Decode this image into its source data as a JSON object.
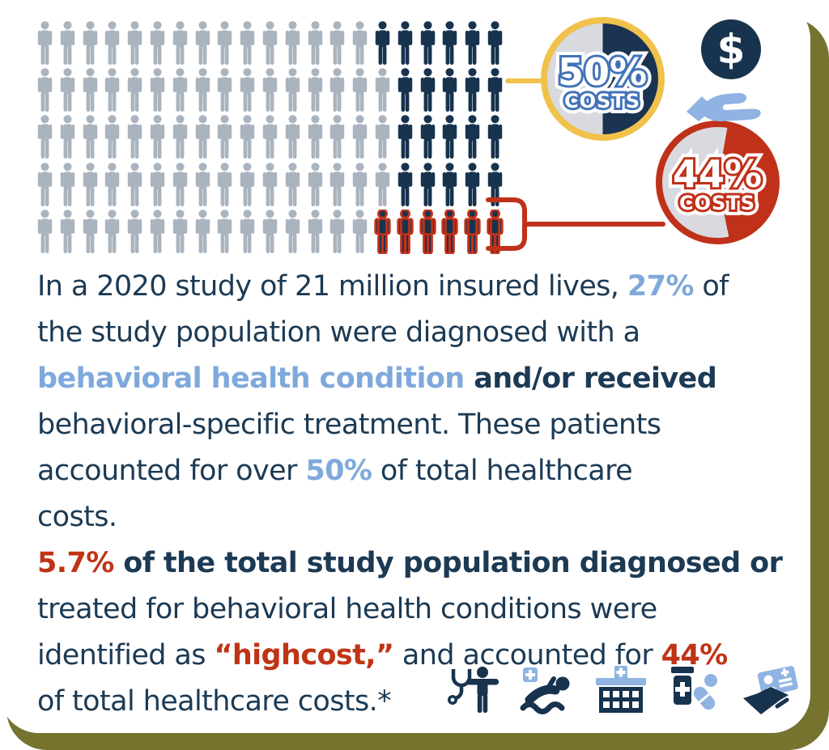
{
  "colors": {
    "navy": "#17334E",
    "gray_person": "#AAB4BF",
    "red": "#C0311A",
    "gold": "#F0C14B",
    "light_blue": "#8FB3E2",
    "pie_gray": "#D8DADF",
    "text_navy": "#1C3A54",
    "text_blue": "#7FA9DC",
    "text_red": "#BF3415",
    "olive": "#75732E",
    "blue_outline": "#4273B8"
  },
  "pictograph": {
    "columns": 21,
    "rows": [
      {
        "gray": 15,
        "navy": 6,
        "red": 0
      },
      {
        "gray": 16,
        "navy": 5,
        "red": 0
      },
      {
        "gray": 16,
        "navy": 5,
        "red": 0
      },
      {
        "gray": 16,
        "navy": 5,
        "red": 0
      },
      {
        "gray": 15,
        "navy": 0,
        "red": 6
      }
    ]
  },
  "pie_50": {
    "value": "50%",
    "label": "COSTS"
  },
  "pie_44": {
    "value": "44%",
    "label": "COSTS"
  },
  "money_icon": {
    "symbol": "$"
  },
  "text_lines": [
    [
      {
        "t": "In a 2020 study of 21 million insured lives, ",
        "s": "n"
      },
      {
        "t": "27%",
        "s": "bb"
      },
      {
        "t": " of",
        "s": "n"
      }
    ],
    [
      {
        "t": "the study population were diagnosed with a",
        "s": "n"
      }
    ],
    [
      {
        "t": "behavioral health condition",
        "s": "bb"
      },
      {
        "t": " and/or received",
        "s": "nb"
      }
    ],
    [
      {
        "t": "behavioral-specific treatment. These patients",
        "s": "n"
      }
    ],
    [
      {
        "t": "accounted for over ",
        "s": "n"
      },
      {
        "t": "50%",
        "s": "bb"
      },
      {
        "t": " of total healthcare",
        "s": "n"
      }
    ],
    [
      {
        "t": "costs.",
        "s": "n"
      }
    ],
    [
      {
        "t": "5.7%",
        "s": "rb"
      },
      {
        "t": " of the total study population diagnosed or",
        "s": "nb"
      }
    ],
    [
      {
        "t": "treated for behavioral health conditions were",
        "s": "n"
      }
    ],
    [
      {
        "t": "identified as ",
        "s": "n"
      },
      {
        "t": "“highcost,”",
        "s": "rb"
      },
      {
        "t": " and accounted for ",
        "s": "n"
      },
      {
        "t": "44%",
        "s": "rb"
      }
    ],
    [
      {
        "t": "of total healthcare costs.*",
        "s": "n"
      }
    ]
  ],
  "bottom_icons": [
    "stethoscope-doctor",
    "patient-recovery",
    "hospital",
    "medication",
    "insurance-card"
  ],
  "chart_data": [
    {
      "type": "pictograph",
      "rows": 5,
      "columns": 21,
      "total_icons": 105,
      "series": [
        {
          "name": "rest of study population",
          "count": 78,
          "color": "#AAB4BF"
        },
        {
          "name": "diagnosed with behavioral health condition and/or received treatment (27%)",
          "count": 21,
          "color": "#17334E"
        },
        {
          "name": "high-cost behavioral health patients (5.7%)",
          "count": 6,
          "color": "#17334E",
          "outline": "#C0311A"
        }
      ]
    },
    {
      "type": "pie",
      "title": "50% COSTS",
      "values": [
        50,
        50
      ],
      "colors": [
        "#1A3350",
        "#D8DADF"
      ],
      "ring": "#F0C14B"
    },
    {
      "type": "pie",
      "title": "44% COSTS",
      "values": [
        44,
        56
      ],
      "colors": [
        "#C0311A",
        "#D8DADF"
      ],
      "ring": "#C0311A"
    }
  ]
}
